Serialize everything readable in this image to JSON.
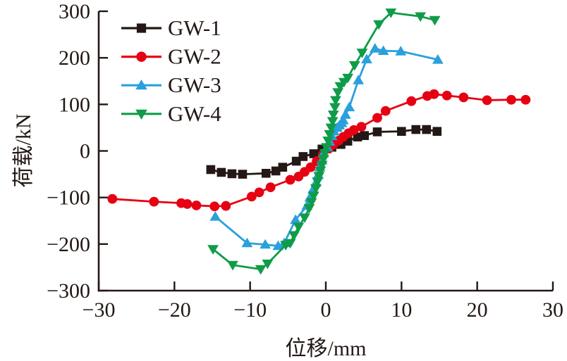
{
  "chart_data": {
    "type": "line",
    "title": "",
    "xlabel": "位移/mm",
    "ylabel": "荷载/kN",
    "xlim": [
      -30,
      30
    ],
    "ylim": [
      -300,
      300
    ],
    "x_ticks": [
      -30,
      -20,
      -10,
      0,
      10,
      20,
      30
    ],
    "y_ticks": [
      -300,
      -200,
      -100,
      0,
      100,
      200,
      300
    ],
    "x_tick_labels": [
      "−30",
      "−20",
      "−10",
      "0",
      "10",
      "20",
      "30"
    ],
    "y_tick_labels": [
      "−300",
      "−200",
      "−100",
      "0",
      "100",
      "200",
      "300"
    ],
    "grid": false,
    "legend_position": "upper-left-inside",
    "axis_color": "#231815",
    "background_color": "#ffffff",
    "series": [
      {
        "name": "GW-1",
        "color": "#231815",
        "marker": "square",
        "points": [
          [
            -15.2,
            -40
          ],
          [
            -13.8,
            -46
          ],
          [
            -12.4,
            -49
          ],
          [
            -11.0,
            -50
          ],
          [
            -7.9,
            -48
          ],
          [
            -6.6,
            -43
          ],
          [
            -5.7,
            -35
          ],
          [
            -3.9,
            -22
          ],
          [
            -3.0,
            -12
          ],
          [
            -1.6,
            -6
          ],
          [
            -0.5,
            4
          ],
          [
            0.8,
            8
          ],
          [
            2.0,
            14
          ],
          [
            2.9,
            21
          ],
          [
            4.2,
            30
          ],
          [
            5.1,
            33
          ],
          [
            6.8,
            41
          ],
          [
            10.0,
            42
          ],
          [
            11.9,
            46
          ],
          [
            13.3,
            46
          ],
          [
            14.7,
            42
          ]
        ]
      },
      {
        "name": "GW-2",
        "color": "#e60012",
        "marker": "circle",
        "points": [
          [
            -28.2,
            -103
          ],
          [
            -22.7,
            -109
          ],
          [
            -19.1,
            -112
          ],
          [
            -18.3,
            -114
          ],
          [
            -17.1,
            -117
          ],
          [
            -14.7,
            -119
          ],
          [
            -13.2,
            -118
          ],
          [
            -9.8,
            -98
          ],
          [
            -8.8,
            -89
          ],
          [
            -7.3,
            -78
          ],
          [
            -4.7,
            -62
          ],
          [
            -3.6,
            -55
          ],
          [
            -2.8,
            -45
          ],
          [
            -2.0,
            -35
          ],
          [
            -1.2,
            -22
          ],
          [
            -0.4,
            -8
          ],
          [
            0.4,
            5
          ],
          [
            1.0,
            14
          ],
          [
            1.7,
            22
          ],
          [
            2.3,
            30
          ],
          [
            3.0,
            38
          ],
          [
            3.7,
            45
          ],
          [
            4.7,
            52
          ],
          [
            6.8,
            71
          ],
          [
            7.9,
            86
          ],
          [
            11.3,
            107
          ],
          [
            13.4,
            118
          ],
          [
            14.3,
            122
          ],
          [
            16.0,
            119
          ],
          [
            18.2,
            115
          ],
          [
            21.3,
            109
          ],
          [
            24.5,
            110
          ],
          [
            26.4,
            110
          ]
        ]
      },
      {
        "name": "GW-3",
        "color": "#2aa0dc",
        "marker": "triangle-up",
        "points": [
          [
            -14.6,
            -141
          ],
          [
            -10.4,
            -198
          ],
          [
            -8.0,
            -201
          ],
          [
            -6.3,
            -204
          ],
          [
            -5.5,
            -198
          ],
          [
            -4.0,
            -148
          ],
          [
            -2.5,
            -118
          ],
          [
            -2.1,
            -100
          ],
          [
            -1.7,
            -83
          ],
          [
            -1.3,
            -68
          ],
          [
            -1.0,
            -51
          ],
          [
            -0.8,
            -35
          ],
          [
            -0.5,
            -20
          ],
          [
            -0.3,
            -5
          ],
          [
            0.2,
            8
          ],
          [
            0.5,
            20
          ],
          [
            0.8,
            32
          ],
          [
            1.1,
            42
          ],
          [
            1.5,
            50
          ],
          [
            1.8,
            55
          ],
          [
            2.1,
            60
          ],
          [
            2.3,
            66
          ],
          [
            2.6,
            78
          ],
          [
            3.1,
            94
          ],
          [
            4.3,
            152
          ],
          [
            5.4,
            197
          ],
          [
            6.5,
            220
          ],
          [
            7.6,
            215
          ],
          [
            9.9,
            214
          ],
          [
            14.8,
            196
          ]
        ]
      },
      {
        "name": "GW-4",
        "color": "#0f9c49",
        "marker": "triangle-down",
        "points": [
          [
            -14.9,
            -211
          ],
          [
            -12.3,
            -245
          ],
          [
            -8.6,
            -254
          ],
          [
            -7.7,
            -242
          ],
          [
            -5.3,
            -202
          ],
          [
            -4.7,
            -198
          ],
          [
            -4.2,
            -181
          ],
          [
            -3.6,
            -163
          ],
          [
            -2.8,
            -143
          ],
          [
            -2.2,
            -123
          ],
          [
            -1.9,
            -110
          ],
          [
            -1.6,
            -96
          ],
          [
            -1.3,
            -80
          ],
          [
            -1.1,
            -66
          ],
          [
            -0.9,
            -54
          ],
          [
            -0.7,
            -42
          ],
          [
            -0.5,
            -30
          ],
          [
            -0.3,
            -17
          ],
          [
            -0.1,
            -5
          ],
          [
            0.1,
            8
          ],
          [
            0.3,
            22
          ],
          [
            0.5,
            36
          ],
          [
            0.7,
            50
          ],
          [
            0.9,
            64
          ],
          [
            1.0,
            78
          ],
          [
            1.2,
            94
          ],
          [
            1.3,
            109
          ],
          [
            1.6,
            126
          ],
          [
            1.9,
            139
          ],
          [
            2.4,
            148
          ],
          [
            2.9,
            157
          ],
          [
            3.8,
            184
          ],
          [
            4.8,
            211
          ],
          [
            7.0,
            272
          ],
          [
            8.6,
            297
          ],
          [
            12.5,
            289
          ],
          [
            14.4,
            281
          ]
        ]
      }
    ]
  }
}
